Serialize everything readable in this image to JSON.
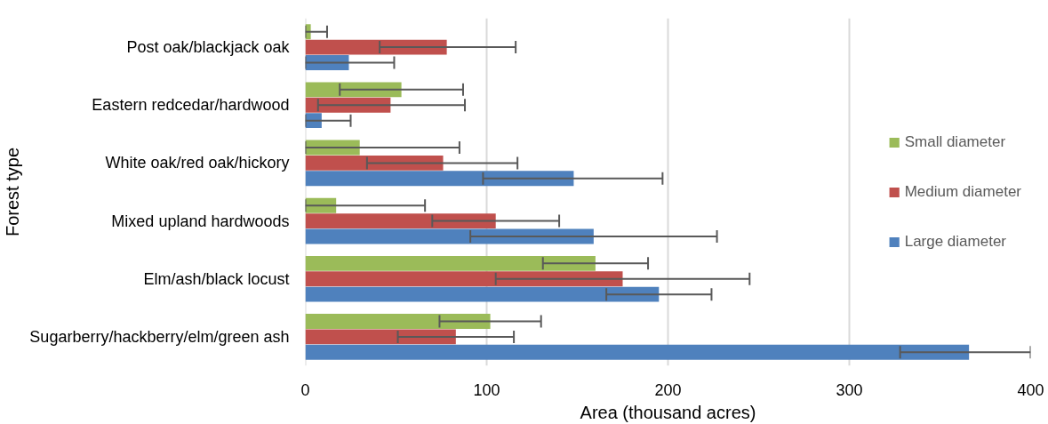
{
  "chart_data": {
    "type": "bar",
    "orientation": "horizontal",
    "xlabel": "Area (thousand acres)",
    "ylabel": "Forest type",
    "categories": [
      "Post oak/blackjack oak",
      "Eastern redcedar/hardwood",
      "White oak/red oak/hickory",
      "Mixed upland hardwoods",
      "Elm/ash/black locust",
      "Sugarberry/hackberry/elm/green ash"
    ],
    "series": [
      {
        "name": "Small diameter",
        "color": "#9bbb59",
        "values": [
          3,
          53,
          30,
          17,
          160,
          102
        ],
        "errors": [
          [
            0,
            12
          ],
          [
            19,
            87
          ],
          [
            0,
            85
          ],
          [
            0,
            66
          ],
          [
            131,
            189
          ],
          [
            74,
            130
          ]
        ]
      },
      {
        "name": "Medium diameter",
        "color": "#c0504d",
        "values": [
          78,
          47,
          76,
          105,
          175,
          83
        ],
        "errors": [
          [
            41,
            116
          ],
          [
            7,
            88
          ],
          [
            34,
            117
          ],
          [
            70,
            140
          ],
          [
            105,
            245
          ],
          [
            51,
            115
          ]
        ]
      },
      {
        "name": "Large diameter",
        "color": "#4f81bd",
        "values": [
          24,
          9,
          148,
          159,
          195,
          366
        ],
        "errors": [
          [
            0,
            49
          ],
          [
            0,
            25
          ],
          [
            98,
            197
          ],
          [
            91,
            227
          ],
          [
            166,
            224
          ],
          [
            328,
            400
          ]
        ]
      }
    ],
    "xlim": [
      0,
      400
    ],
    "xticks": [
      0,
      100,
      200,
      300,
      400
    ],
    "grid": "x",
    "legend": "right"
  }
}
